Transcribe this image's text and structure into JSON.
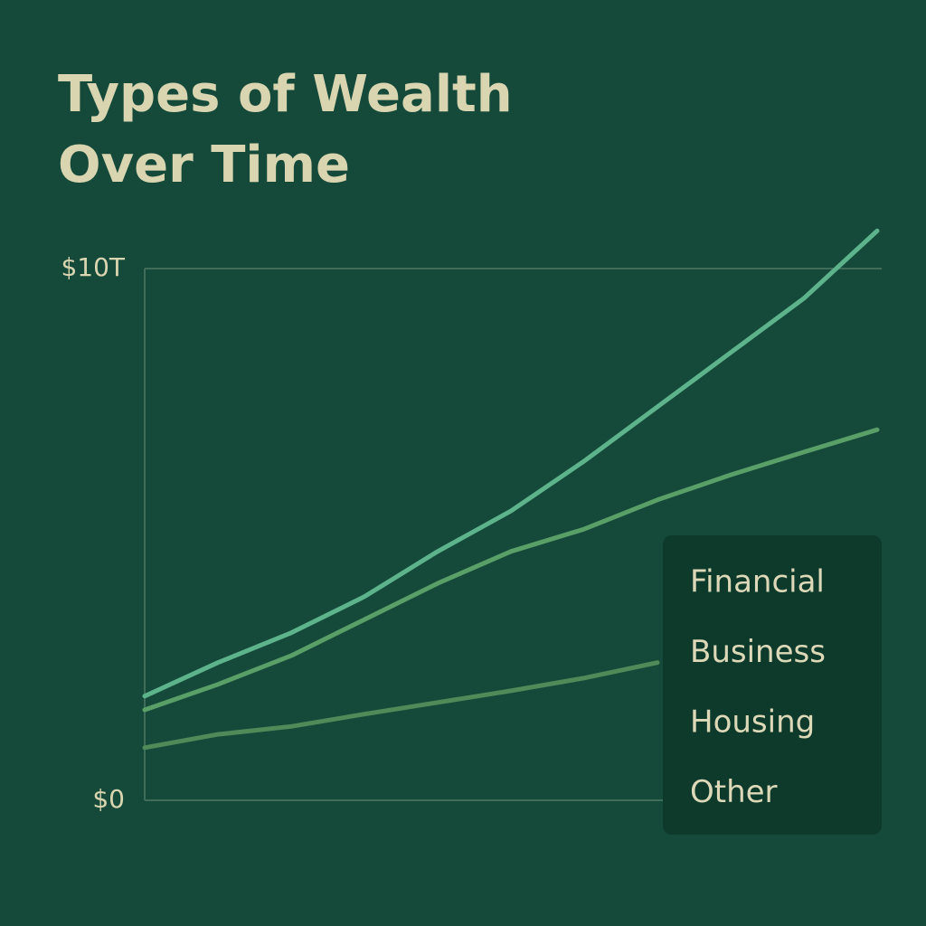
{
  "chart_data": {
    "type": "line",
    "title": "Types of Wealth Over Time",
    "categories": [
      null,
      null,
      null,
      null,
      null,
      null,
      null,
      null,
      null,
      null,
      null
    ],
    "series": [
      {
        "name": "Financial",
        "color": "#5db38c",
        "values": [
          1.96,
          2.59,
          3.15,
          3.83,
          4.68,
          5.44,
          6.38,
          7.4,
          8.42,
          9.44,
          10.71
        ]
      },
      {
        "name": "Business",
        "color": "#5a9e68",
        "values": [
          1.7,
          2.18,
          2.72,
          3.4,
          4.08,
          4.68,
          5.1,
          5.65,
          6.12,
          6.55,
          6.97
        ]
      },
      {
        "name": "Housing",
        "color": "#4f8a58",
        "values": [
          0.99,
          1.24,
          1.39,
          1.62,
          1.84,
          2.06,
          2.3,
          2.59,
          null,
          null,
          null
        ]
      },
      {
        "name": "Other",
        "values": [
          null,
          null,
          null,
          null,
          null,
          null,
          null,
          null,
          null,
          null,
          null
        ]
      }
    ],
    "ylim": [
      0,
      10
    ],
    "yticks": [
      {
        "value": 0,
        "label": "$0"
      },
      {
        "value": 10,
        "label": "$10T"
      }
    ],
    "grid": true
  }
}
